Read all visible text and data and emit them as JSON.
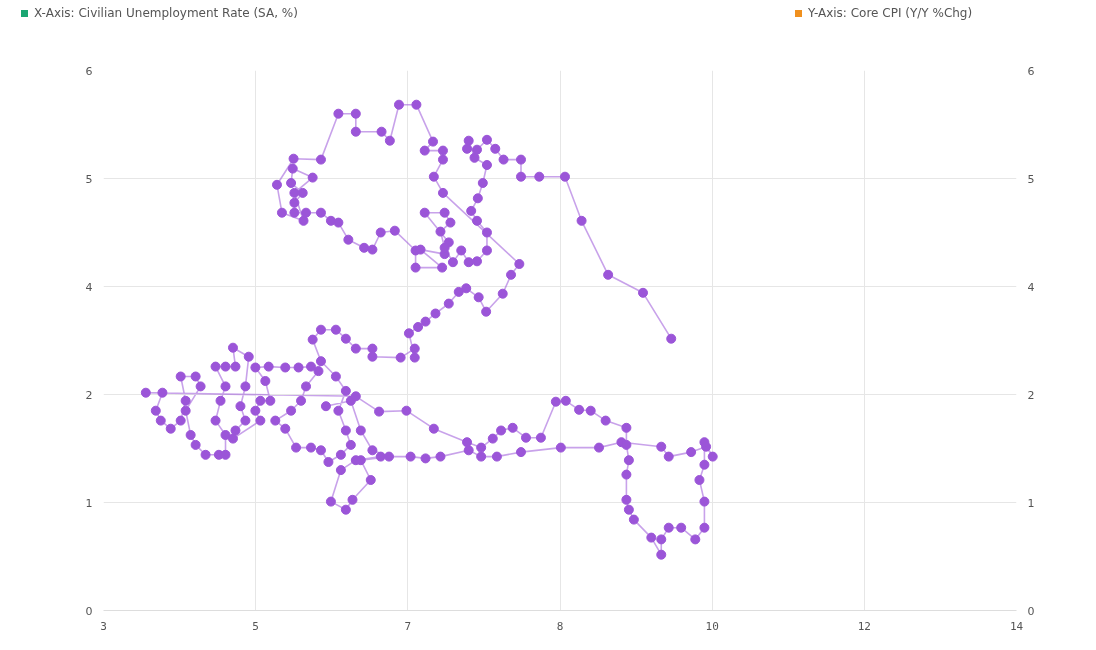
{
  "chart_data": {
    "type": "line",
    "annotations": [
      "X-Axis: Civilian Unemployment Rate (SA, %)",
      "Y-Axis: Core CPI (Y/Y %Chg)"
    ],
    "xlim": [
      3,
      14
    ],
    "xticks": [
      {
        "value": 3,
        "label": "3"
      },
      {
        "value": 4.833,
        "label": "5"
      },
      {
        "value": 6.667,
        "label": "7"
      },
      {
        "value": 8.5,
        "label": "8"
      },
      {
        "value": 10.333,
        "label": "10"
      },
      {
        "value": 12.167,
        "label": "12"
      },
      {
        "value": 14,
        "label": "14"
      }
    ],
    "ylim": [
      0,
      6
    ],
    "yticks": [
      {
        "value": 0,
        "label": "0"
      },
      {
        "value": 1.2,
        "label": "1"
      },
      {
        "value": 2.4,
        "label": "2"
      },
      {
        "value": 3.6,
        "label": "4"
      },
      {
        "value": 4.8,
        "label": "5"
      },
      {
        "value": 6,
        "label": "6"
      }
    ],
    "y2lim": [
      0,
      6
    ],
    "y2ticks": [
      {
        "value": 0,
        "label": "0"
      },
      {
        "value": 1.2,
        "label": "1"
      },
      {
        "value": 2.4,
        "label": "2"
      },
      {
        "value": 3.6,
        "label": "4"
      },
      {
        "value": 4.8,
        "label": "5"
      },
      {
        "value": 6,
        "label": "6"
      }
    ],
    "grid": true,
    "marker": "circle",
    "line_style": "solid",
    "series": [
      {
        "color": "#9b55d8",
        "x": [
          5.68,
          5.98,
          6.1,
          6.24,
          6.44,
          6.1,
          6.22,
          6.0,
          5.92,
          5.74,
          5.86,
          6.04,
          6.34,
          6.7,
          6.88,
          7.06,
          7.4,
          7.55,
          7.74,
          8.03,
          8.51,
          8.97,
          9.24,
          9.72,
          9.81,
          10.08,
          10.26,
          10.34,
          10.24,
          10.24,
          10.18,
          10.24,
          10.24,
          10.13,
          9.96,
          9.81,
          9.72,
          9.72,
          9.6,
          9.39,
          9.33,
          9.3,
          9.3,
          9.33,
          9.3,
          9.3,
          9.05,
          8.87,
          8.73,
          8.57,
          8.45,
          8.27,
          8.09,
          7.93,
          7.79,
          7.69,
          7.55,
          7.38,
          6.98,
          6.65,
          6.32,
          6.04,
          3.51,
          3.71,
          3.63,
          3.69,
          3.81,
          3.93,
          3.99,
          3.93,
          4.11,
          4.17,
          3.99,
          4.05,
          4.11,
          4.23,
          4.39,
          4.47,
          4.47,
          4.35,
          4.41,
          4.47,
          4.35,
          4.47,
          4.59,
          4.56,
          4.75,
          4.71,
          4.65,
          4.71,
          4.59,
          4.56,
          4.89,
          4.83,
          4.89,
          5.01,
          4.95,
          4.83,
          4.99,
          5.19,
          5.35,
          5.5,
          5.59,
          5.44,
          5.38,
          5.26,
          5.07,
          5.19,
          5.32,
          5.5,
          5.62,
          5.71,
          5.86,
          5.98,
          5.92,
          5.83,
          5.92,
          5.8,
          5.62,
          5.52,
          5.62,
          5.8,
          5.92,
          6.04,
          6.24,
          6.24,
          6.58,
          6.75,
          6.75,
          6.68,
          6.79,
          6.88,
          7.0,
          7.16,
          7.28,
          7.37,
          7.52,
          7.61,
          7.81,
          7.91,
          8.01,
          7.09,
          6.98,
          7.09,
          7.09,
          6.87,
          6.97,
          6.77,
          6.56,
          6.45,
          6.35,
          6.04,
          6.04,
          5.83,
          5.62,
          5.29,
          5.09,
          5.15,
          5.41,
          5.3,
          5.52,
          5.28,
          5.26,
          5.4,
          5.3,
          5.3,
          5.44,
          5.62,
          5.74,
          5.83,
          5.95,
          6.14,
          6.24,
          6.34,
          6.51,
          6.76,
          6.76,
          7.08,
          6.82,
          7.11,
          7.16,
          6.87,
          7.11,
          7.18,
          7.06,
          7.11,
          7.21,
          7.31,
          7.4,
          7.5,
          7.62,
          7.62,
          7.5,
          7.43,
          7.51,
          7.57,
          7.62,
          7.47,
          7.4,
          7.38,
          7.5,
          7.62,
          7.72,
          7.82,
          8.03,
          8.03,
          8.25,
          8.56,
          8.76,
          9.08,
          9.5,
          9.84
        ],
        "values": [
          2.27,
          2.33,
          2.0,
          1.78,
          1.71,
          1.67,
          1.45,
          1.23,
          1.12,
          1.21,
          1.56,
          1.67,
          1.71,
          1.71,
          1.69,
          1.71,
          1.78,
          1.71,
          1.71,
          1.76,
          1.81,
          1.81,
          1.87,
          1.82,
          1.71,
          1.76,
          1.82,
          1.71,
          1.87,
          1.62,
          1.45,
          1.21,
          0.92,
          0.79,
          0.92,
          0.92,
          0.79,
          0.62,
          0.81,
          1.01,
          1.12,
          1.23,
          1.51,
          1.67,
          1.84,
          2.03,
          2.11,
          2.22,
          2.23,
          2.33,
          2.32,
          1.92,
          1.92,
          2.03,
          2.0,
          1.91,
          1.81,
          1.87,
          2.02,
          2.22,
          2.21,
          2.38,
          2.42,
          2.42,
          2.22,
          2.11,
          2.02,
          2.11,
          2.33,
          2.6,
          2.6,
          2.49,
          2.22,
          1.95,
          1.84,
          1.73,
          1.73,
          1.73,
          1.95,
          2.11,
          2.33,
          2.49,
          2.71,
          2.71,
          2.71,
          2.92,
          2.82,
          2.49,
          2.27,
          2.11,
          2.0,
          1.91,
          2.11,
          2.22,
          2.33,
          2.33,
          2.55,
          2.7,
          2.71,
          2.7,
          2.7,
          2.71,
          2.66,
          2.49,
          2.33,
          2.22,
          2.11,
          2.02,
          1.81,
          1.81,
          1.78,
          1.65,
          1.73,
          1.84,
          2.0,
          2.22,
          2.44,
          2.6,
          2.77,
          3.01,
          3.12,
          3.12,
          3.02,
          2.91,
          2.91,
          2.82,
          2.81,
          2.91,
          2.81,
          3.08,
          3.15,
          3.21,
          3.3,
          3.41,
          3.54,
          3.58,
          3.48,
          3.32,
          3.52,
          3.73,
          3.85,
          4.64,
          4.82,
          5.01,
          5.11,
          5.11,
          5.21,
          5.62,
          5.62,
          5.22,
          5.32,
          5.32,
          5.52,
          5.52,
          5.01,
          5.02,
          4.73,
          4.42,
          4.33,
          4.64,
          4.81,
          4.91,
          4.75,
          4.64,
          4.53,
          4.42,
          4.42,
          4.42,
          4.33,
          4.31,
          4.12,
          4.03,
          4.01,
          4.2,
          4.22,
          4.0,
          3.81,
          3.81,
          4.01,
          3.96,
          4.09,
          4.42,
          4.42,
          4.31,
          4.21,
          4.03,
          3.87,
          4.0,
          3.87,
          3.88,
          4.0,
          4.2,
          4.33,
          4.44,
          4.58,
          4.75,
          4.95,
          5.03,
          5.22,
          5.13,
          5.12,
          5.23,
          5.13,
          5.01,
          5.01,
          4.82,
          4.82,
          4.82,
          4.33,
          3.73,
          3.53,
          3.02
        ]
      }
    ]
  }
}
